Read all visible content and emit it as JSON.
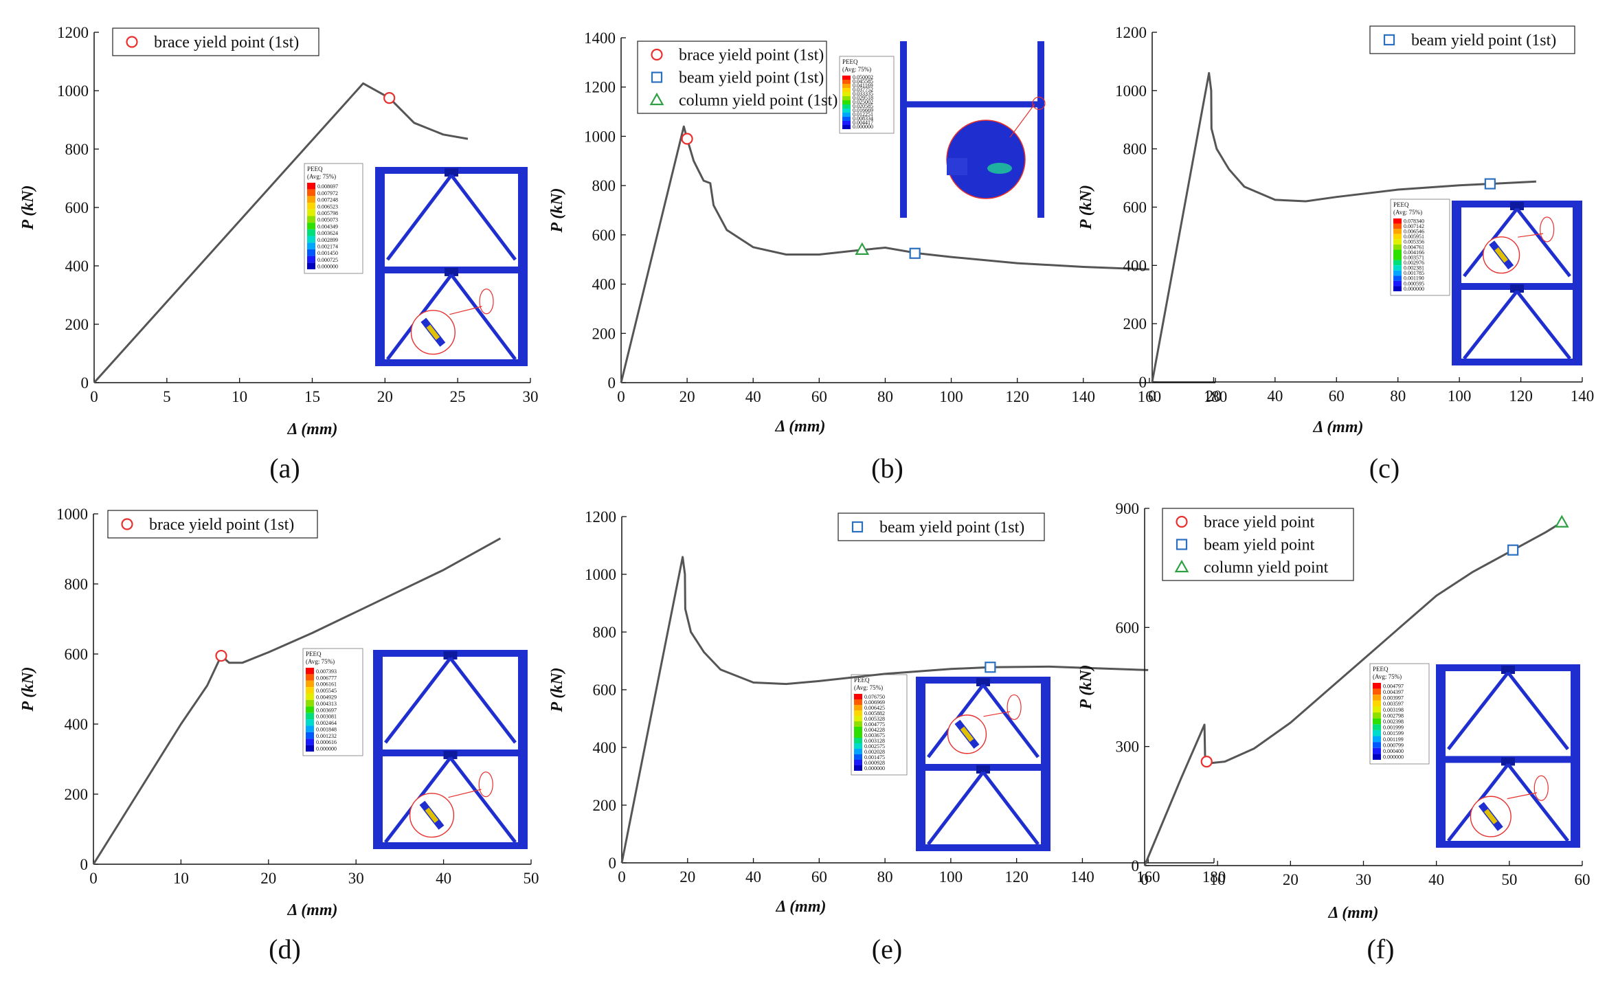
{
  "figure": {
    "marker_colors": {
      "circle": "#e8302e",
      "square": "#2b6fc0",
      "triangle": "#2ea043"
    },
    "curve_color": "#555555",
    "frame_color": "#1f2fcf"
  },
  "chart_data": [
    {
      "id": "a",
      "type": "line",
      "panel_label": "(a)",
      "xlabel": "Δ (mm)",
      "ylabel": "P (kN)",
      "xlim": [
        0,
        30
      ],
      "ylim": [
        0,
        1200
      ],
      "xticks": [
        0,
        5,
        10,
        15,
        20,
        25,
        30
      ],
      "yticks": [
        0,
        200,
        400,
        600,
        800,
        1000,
        1200
      ],
      "series": [
        {
          "name": "P-Δ curve",
          "x": [
            0,
            18.5,
            20.3,
            22,
            24,
            25.7
          ],
          "y": [
            0,
            1025,
            975,
            890,
            850,
            835
          ]
        }
      ],
      "markers": [
        {
          "shape": "circle",
          "label": "brace yield point (1st)",
          "x": 20.3,
          "y": 975
        }
      ],
      "legend": [
        "brace yield point (1st)"
      ],
      "legend_position": "top-left",
      "inset": {
        "title": "PEEQ",
        "subtitle": "(Avg: 75%)",
        "values": [
          "0.008697",
          "0.007972",
          "0.007248",
          "0.006523",
          "0.005798",
          "0.005073",
          "0.004349",
          "0.003624",
          "0.002899",
          "0.002174",
          "0.001450",
          "0.000725",
          "0.000000"
        ]
      }
    },
    {
      "id": "b",
      "type": "line",
      "panel_label": "(b)",
      "xlabel": "Δ (mm)",
      "ylabel": "P (kN)",
      "xlim": [
        0,
        180
      ],
      "ylim": [
        0,
        1400
      ],
      "xticks": [
        0,
        20,
        40,
        60,
        80,
        100,
        120,
        140,
        160,
        180
      ],
      "yticks": [
        0,
        200,
        400,
        600,
        800,
        1000,
        1200,
        1400
      ],
      "series": [
        {
          "name": "P-Δ curve",
          "x": [
            0,
            19,
            20,
            22,
            25,
            27,
            28,
            32,
            40,
            50,
            60,
            70,
            80,
            90,
            100,
            120,
            140,
            160
          ],
          "y": [
            0,
            1040,
            990,
            900,
            820,
            810,
            720,
            620,
            550,
            520,
            520,
            535,
            548,
            525,
            510,
            485,
            470,
            460
          ]
        }
      ],
      "markers": [
        {
          "shape": "circle",
          "label": "brace yield point (1st)",
          "x": 20,
          "y": 990
        },
        {
          "shape": "square",
          "label": "beam yield point (1st)",
          "x": 89,
          "y": 525
        },
        {
          "shape": "triangle",
          "label": "column yield point (1st)",
          "x": 73,
          "y": 540
        }
      ],
      "legend": [
        "brace yield point (1st)",
        "beam yield point (1st)",
        "column yield point (1st)"
      ],
      "legend_position": "top-left",
      "inset": {
        "title": "PEEQ",
        "subtitle": "(Avg: 75%)",
        "values": [
          "0.050002",
          "0.045585",
          "0.041169",
          "0.037752",
          "0.033335",
          "0.029518",
          "0.025002",
          "0.020585",
          "0.016669",
          "0.012251",
          "0.008334",
          "0.004417",
          "0.000000"
        ]
      }
    },
    {
      "id": "c",
      "type": "line",
      "panel_label": "(c)",
      "xlabel": "Δ (mm)",
      "ylabel": "P (kN)",
      "xlim": [
        0,
        140
      ],
      "ylim": [
        0,
        1200
      ],
      "xticks": [
        0,
        20,
        40,
        60,
        80,
        100,
        120,
        140
      ],
      "yticks": [
        0,
        200,
        400,
        600,
        800,
        1000,
        1200
      ],
      "series": [
        {
          "name": "P-Δ curve",
          "x": [
            0,
            18.5,
            19.2,
            19.3,
            21,
            25,
            30,
            40,
            50,
            60,
            80,
            100,
            110,
            125
          ],
          "y": [
            0,
            1060,
            1000,
            870,
            800,
            730,
            670,
            625,
            620,
            635,
            660,
            675,
            680,
            688
          ]
        }
      ],
      "markers": [
        {
          "shape": "square",
          "label": "beam yield point (1st)",
          "x": 110,
          "y": 680
        }
      ],
      "legend": [
        "beam yield point (1st)"
      ],
      "legend_position": "top-right",
      "inset": {
        "title": "PEEQ",
        "subtitle": "(Avg: 75%)",
        "values": [
          "0.078340",
          "0.007142",
          "0.006546",
          "0.005951",
          "0.005356",
          "0.004761",
          "0.004166",
          "0.003571",
          "0.002976",
          "0.002381",
          "0.001785",
          "0.001190",
          "0.000595",
          "0.000000"
        ]
      }
    },
    {
      "id": "d",
      "type": "line",
      "panel_label": "(d)",
      "xlabel": "Δ (mm)",
      "ylabel": "P (kN)",
      "xlim": [
        0,
        50
      ],
      "ylim": [
        0,
        1000
      ],
      "xticks": [
        0,
        10,
        20,
        30,
        40,
        50
      ],
      "yticks": [
        0,
        200,
        400,
        600,
        800,
        1000
      ],
      "series": [
        {
          "name": "P-Δ curve",
          "x": [
            0,
            5,
            10,
            13,
            14.6,
            15.5,
            17,
            20,
            25,
            30,
            35,
            40,
            46.5
          ],
          "y": [
            0,
            200,
            400,
            510,
            595,
            575,
            575,
            605,
            660,
            720,
            780,
            840,
            930
          ]
        }
      ],
      "markers": [
        {
          "shape": "circle",
          "label": "brace yield point (1st)",
          "x": 14.6,
          "y": 595
        }
      ],
      "legend": [
        "brace yield point (1st)"
      ],
      "legend_position": "top-left",
      "inset": {
        "title": "PEEQ",
        "subtitle": "(Avg: 75%)",
        "values": [
          "0.007393",
          "0.006777",
          "0.006161",
          "0.005545",
          "0.004929",
          "0.004313",
          "0.003697",
          "0.003081",
          "0.002464",
          "0.001848",
          "0.001232",
          "0.000616",
          "0.000000"
        ]
      }
    },
    {
      "id": "e",
      "type": "line",
      "panel_label": "(e)",
      "xlabel": "Δ (mm)",
      "ylabel": "P (kN)",
      "xlim": [
        0,
        180
      ],
      "ylim": [
        0,
        1200
      ],
      "xticks": [
        0,
        20,
        40,
        60,
        80,
        100,
        120,
        140,
        160,
        180
      ],
      "yticks": [
        0,
        200,
        400,
        600,
        800,
        1000,
        1200
      ],
      "series": [
        {
          "name": "P-Δ curve",
          "x": [
            0,
            18.5,
            19.2,
            19.3,
            21,
            25,
            30,
            40,
            50,
            60,
            80,
            100,
            112,
            130,
            160
          ],
          "y": [
            0,
            1060,
            1000,
            880,
            800,
            730,
            670,
            625,
            620,
            630,
            655,
            672,
            678,
            680,
            668
          ]
        }
      ],
      "markers": [
        {
          "shape": "square",
          "label": "beam yield point (1st)",
          "x": 112,
          "y": 678
        }
      ],
      "legend": [
        "beam yield point (1st)"
      ],
      "legend_position": "top-right",
      "inset": {
        "title": "PEEQ",
        "subtitle": "(Avg: 75%)",
        "values": [
          "0.076750",
          "0.006969",
          "0.006425",
          "0.005882",
          "0.005328",
          "0.004775",
          "0.004228",
          "0.003675",
          "0.003128",
          "0.002575",
          "0.002028",
          "0.001475",
          "0.000928",
          "0.000000"
        ]
      }
    },
    {
      "id": "f",
      "type": "line",
      "panel_label": "(f)",
      "xlabel": "Δ (mm)",
      "ylabel": "P (kN)",
      "xlim": [
        0,
        60
      ],
      "ylim": [
        0,
        900
      ],
      "xticks": [
        0,
        10,
        20,
        30,
        40,
        50,
        60
      ],
      "yticks": [
        0,
        300,
        600,
        900
      ],
      "series": [
        {
          "name": "P-Δ curve",
          "x": [
            0,
            5,
            8.2,
            8.3,
            9,
            11,
            15,
            20,
            25,
            30,
            35,
            40,
            45,
            50,
            55,
            57.2
          ],
          "y": [
            0,
            220,
            355,
            265,
            258,
            262,
            295,
            360,
            440,
            520,
            600,
            680,
            740,
            790,
            840,
            865
          ]
        }
      ],
      "markers": [
        {
          "shape": "circle",
          "label": "brace yield point",
          "x": 8.5,
          "y": 262
        },
        {
          "shape": "square",
          "label": "beam yield point",
          "x": 50.5,
          "y": 795
        },
        {
          "shape": "triangle",
          "label": "column yield point",
          "x": 57.2,
          "y": 865
        }
      ],
      "legend": [
        "brace yield point",
        "beam yield point",
        "column yield point"
      ],
      "legend_position": "top-left",
      "inset": {
        "title": "PEEQ",
        "subtitle": "(Avg: 75%)",
        "values": [
          "0.004797",
          "0.004397",
          "0.003997",
          "0.003597",
          "0.003198",
          "0.002798",
          "0.002398",
          "0.001999",
          "0.001599",
          "0.001199",
          "0.000799",
          "0.000400",
          "0.000000"
        ]
      }
    }
  ]
}
